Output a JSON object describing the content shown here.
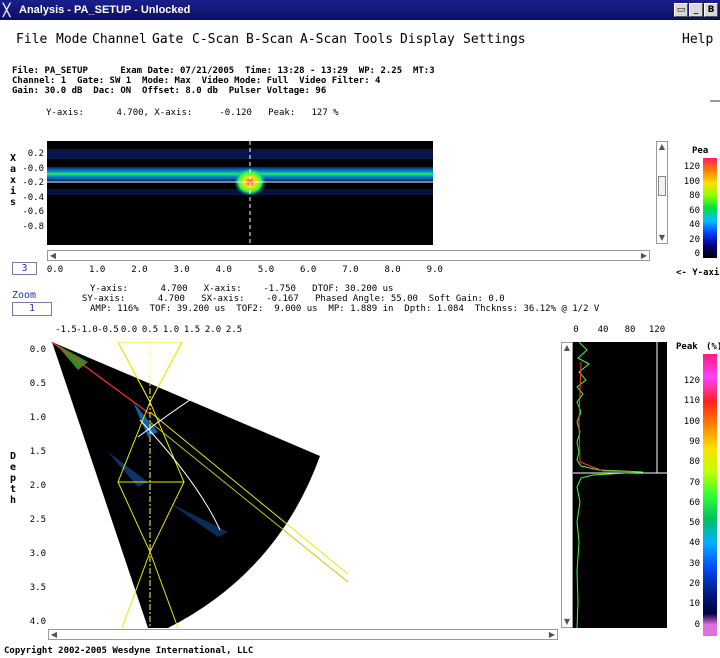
{
  "window": {
    "title": "Analysis - PA_SETUP - Unlocked",
    "btn_min": "▭",
    "btn_max": "_",
    "btn_close": "B"
  },
  "menu": [
    "File",
    "Mode",
    "Channel",
    "Gate",
    "C-Scan",
    "B-Scan",
    "A-Scan",
    "Tools",
    "Display",
    "Settings",
    "Help"
  ],
  "info": {
    "line1": "File: PA_SETUP      Exam Date: 07/21/2005  Time: 13:28 - 13:29  WP: 2.25  MT:3",
    "line2": "Channel: 1  Gate: SW 1  Mode: Max  Video Mode: Full  Video Filter: 4",
    "line3": "Gain: 30.0 dB  Dac: ON  Offset: 8.0 db  Pulser Voltage: 96"
  },
  "cscan": {
    "readout": "Y-axis:      4.700, X-axis:     -0.120   Peak:   127 %",
    "side_label": "X axis",
    "y_ticks": [
      "0.2",
      "-0.0",
      "-0.2",
      "-0.4",
      "-0.6",
      "-0.8"
    ],
    "x_ticks": [
      "0.0",
      "1.0",
      "2.0",
      "3.0",
      "4.0",
      "5.0",
      "6.0",
      "7.0",
      "8.0",
      "9.0"
    ],
    "field_value": "3",
    "cursor_x": 4.7,
    "cursor_y": -0.12
  },
  "zoom": {
    "label": "Zoom",
    "value": "1"
  },
  "bscan_readout": {
    "line1": "Y-axis:      4.700   X-axis:    -1.750   DTOF: 30.200 us",
    "line2": "SY-axis:      4.700   SX-axis:    -0.167   Phased Angle: 55.00  Soft Gain: 0.0",
    "line3": "AMP: 116%  TOF: 39.200 us  TOF2:  9.000 us  MP: 1.889 in  Dpth: 1.084  Thcknss: 36.12% @ 1/2 V"
  },
  "sector": {
    "side_label": "Depth",
    "x_ticks": [
      "-1.5",
      "-1.0",
      "-0.5",
      "0.0",
      "0.5",
      "1.0",
      "1.5",
      "2.0",
      "2.5"
    ],
    "y_ticks": [
      "0.0",
      "0.5",
      "1.0",
      "1.5",
      "2.0",
      "2.5",
      "3.0",
      "3.5",
      "4.0"
    ]
  },
  "ascan": {
    "x_ticks": [
      "0",
      "40",
      "80",
      "120"
    ]
  },
  "legend_top": {
    "title": "Pea",
    "ticks": [
      "120",
      "100",
      "80",
      "60",
      "40",
      "20",
      "0"
    ],
    "caption": "<- Y-axi"
  },
  "legend_bottom": {
    "title": "Peak",
    "unit": "(%)",
    "ticks": [
      "120",
      "110",
      "100",
      "90",
      "80",
      "70",
      "60",
      "50",
      "40",
      "30",
      "20",
      "10",
      "0"
    ]
  },
  "footer": "Copyright 2002-2005 Wesdyne International, LLC",
  "colors": {
    "title_bar": "#0a0f63",
    "plot_bg": "#000000"
  }
}
